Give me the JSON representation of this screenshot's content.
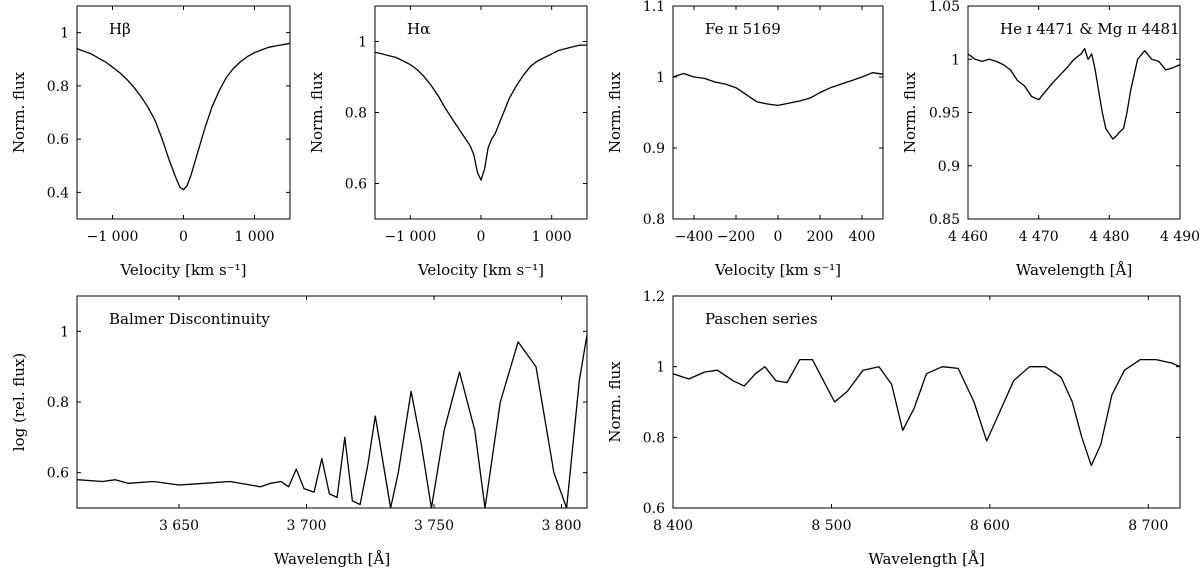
{
  "chart_data": [
    {
      "id": "hbeta",
      "type": "line",
      "title": "Hβ",
      "xlabel": "Velocity [km s⁻¹]",
      "ylabel": "Norm. flux",
      "xlim": [
        -1500,
        1500
      ],
      "ylim": [
        0.3,
        1.1
      ],
      "xticks": [
        -1000,
        0,
        1000
      ],
      "xtick_labels": [
        "−1 000",
        "0",
        "1 000"
      ],
      "yticks": [
        0.4,
        0.6,
        0.8,
        1.0
      ],
      "ytick_labels": [
        "0.4",
        "0.6",
        "0.8",
        "1"
      ],
      "grid": false,
      "series": [
        {
          "x": [
            -1500,
            -1400,
            -1300,
            -1200,
            -1100,
            -1000,
            -900,
            -800,
            -700,
            -600,
            -500,
            -400,
            -300,
            -200,
            -100,
            -50,
            0,
            50,
            100,
            200,
            300,
            400,
            500,
            600,
            700,
            800,
            900,
            1000,
            1100,
            1200,
            1300,
            1400,
            1500
          ],
          "y": [
            0.94,
            0.93,
            0.92,
            0.905,
            0.89,
            0.87,
            0.85,
            0.825,
            0.795,
            0.76,
            0.72,
            0.67,
            0.6,
            0.52,
            0.45,
            0.42,
            0.41,
            0.425,
            0.46,
            0.55,
            0.64,
            0.72,
            0.78,
            0.83,
            0.865,
            0.89,
            0.91,
            0.925,
            0.935,
            0.945,
            0.95,
            0.955,
            0.96
          ]
        }
      ]
    },
    {
      "id": "halpha",
      "type": "line",
      "title": "Hα",
      "xlabel": "Velocity [km s⁻¹]",
      "ylabel": "Norm. flux",
      "xlim": [
        -1500,
        1500
      ],
      "ylim": [
        0.5,
        1.1
      ],
      "xticks": [
        -1000,
        0,
        1000
      ],
      "xtick_labels": [
        "−1 000",
        "0",
        "1 000"
      ],
      "yticks": [
        0.6,
        0.8,
        1.0
      ],
      "ytick_labels": [
        "0.6",
        "0.8",
        "1"
      ],
      "grid": false,
      "series": [
        {
          "x": [
            -1500,
            -1400,
            -1300,
            -1200,
            -1100,
            -1000,
            -900,
            -800,
            -700,
            -600,
            -500,
            -400,
            -300,
            -200,
            -150,
            -100,
            -50,
            0,
            50,
            100,
            150,
            200,
            300,
            400,
            500,
            600,
            700,
            800,
            900,
            1000,
            1100,
            1200,
            1300,
            1400,
            1500
          ],
          "y": [
            0.97,
            0.965,
            0.96,
            0.955,
            0.945,
            0.935,
            0.92,
            0.9,
            0.875,
            0.845,
            0.81,
            0.78,
            0.75,
            0.72,
            0.705,
            0.68,
            0.63,
            0.61,
            0.64,
            0.7,
            0.725,
            0.74,
            0.79,
            0.84,
            0.875,
            0.905,
            0.93,
            0.945,
            0.955,
            0.965,
            0.975,
            0.98,
            0.985,
            0.99,
            0.99
          ]
        }
      ]
    },
    {
      "id": "fe5169",
      "type": "line",
      "title": "Fe ɪɪ 5169",
      "xlabel": "Velocity [km s⁻¹]",
      "ylabel": "Norm. flux",
      "xlim": [
        -500,
        500
      ],
      "ylim": [
        0.8,
        1.1
      ],
      "xticks": [
        -400,
        -200,
        0,
        200,
        400
      ],
      "xtick_labels": [
        "−400",
        "−200",
        "0",
        "200",
        "400"
      ],
      "yticks": [
        0.8,
        0.9,
        1.0,
        1.1
      ],
      "ytick_labels": [
        "0.8",
        "0.9",
        "1",
        "1.1"
      ],
      "grid": false,
      "series": [
        {
          "x": [
            -500,
            -450,
            -400,
            -350,
            -300,
            -250,
            -200,
            -150,
            -100,
            -50,
            0,
            50,
            100,
            150,
            200,
            250,
            300,
            350,
            400,
            450,
            500
          ],
          "y": [
            1.0,
            1.005,
            1.0,
            0.998,
            0.993,
            0.99,
            0.985,
            0.975,
            0.965,
            0.962,
            0.96,
            0.963,
            0.966,
            0.97,
            0.978,
            0.985,
            0.99,
            0.995,
            1.0,
            1.006,
            1.004
          ]
        }
      ]
    },
    {
      "id": "he4471",
      "type": "line",
      "title": "He ɪ 4471 & Mg ɪɪ 4481",
      "xlabel": "Wavelength [Å]",
      "ylabel": "Norm. flux",
      "xlim": [
        4460,
        4490
      ],
      "ylim": [
        0.85,
        1.05
      ],
      "xticks": [
        4460,
        4470,
        4480,
        4490
      ],
      "xtick_labels": [
        "4 460",
        "4 470",
        "4 480",
        "4 490"
      ],
      "yticks": [
        0.85,
        0.9,
        0.95,
        1.0,
        1.05
      ],
      "ytick_labels": [
        "0.85",
        "0.9",
        "0.95",
        "1",
        "1.05"
      ],
      "grid": false,
      "series": [
        {
          "x": [
            4460,
            4461,
            4462,
            4463,
            4464,
            4465,
            4466,
            4467,
            4468,
            4469,
            4470,
            4471,
            4472,
            4473,
            4474,
            4475,
            4476,
            4476.5,
            4477,
            4477.5,
            4478,
            4478.5,
            4479,
            4479.5,
            4480,
            4480.5,
            4481,
            4481.5,
            4482,
            4482.5,
            4483,
            4484,
            4485,
            4486,
            4487,
            4488,
            4489,
            4490
          ],
          "y": [
            1.005,
            1.0,
            0.998,
            1.0,
            0.998,
            0.995,
            0.99,
            0.98,
            0.975,
            0.965,
            0.962,
            0.97,
            0.978,
            0.985,
            0.992,
            1.0,
            1.005,
            1.01,
            1.0,
            1.005,
            0.99,
            0.97,
            0.95,
            0.935,
            0.93,
            0.925,
            0.928,
            0.932,
            0.935,
            0.95,
            0.97,
            1.0,
            1.008,
            1.0,
            0.998,
            0.99,
            0.992,
            0.995
          ]
        }
      ]
    },
    {
      "id": "balmer",
      "type": "line",
      "title": "Balmer Discontinuity",
      "xlabel": "Wavelength [Å]",
      "ylabel": "log (rel. flux)",
      "xlim": [
        3610,
        3810
      ],
      "ylim": [
        0.5,
        1.1
      ],
      "xticks": [
        3650,
        3700,
        3750,
        3800
      ],
      "xtick_labels": [
        "3 650",
        "3 700",
        "3 750",
        "3 800"
      ],
      "yticks": [
        0.6,
        0.8,
        1.0
      ],
      "ytick_labels": [
        "0.6",
        "0.8",
        "1"
      ],
      "grid": false,
      "series": [
        {
          "x": [
            3610,
            3620,
            3625,
            3630,
            3640,
            3650,
            3660,
            3670,
            3678,
            3682,
            3686,
            3690,
            3693,
            3696,
            3699,
            3703,
            3706,
            3709,
            3712,
            3715,
            3718,
            3721,
            3724,
            3727,
            3730,
            3733,
            3736,
            3741,
            3745,
            3749,
            3754,
            3760,
            3766,
            3770,
            3776,
            3783,
            3790,
            3797,
            3802,
            3807,
            3810
          ],
          "y": [
            0.58,
            0.575,
            0.58,
            0.57,
            0.575,
            0.565,
            0.57,
            0.575,
            0.565,
            0.56,
            0.57,
            0.575,
            0.56,
            0.61,
            0.555,
            0.545,
            0.64,
            0.54,
            0.53,
            0.7,
            0.52,
            0.51,
            0.62,
            0.76,
            0.63,
            0.5,
            0.6,
            0.83,
            0.68,
            0.5,
            0.72,
            0.885,
            0.72,
            0.5,
            0.8,
            0.97,
            0.9,
            0.6,
            0.5,
            0.86,
            0.99
          ]
        }
      ]
    },
    {
      "id": "paschen",
      "type": "line",
      "title": "Paschen series",
      "xlabel": "Wavelength [Å]",
      "ylabel": "Norm. flux",
      "xlim": [
        8400,
        8720
      ],
      "ylim": [
        0.6,
        1.2
      ],
      "xticks": [
        8400,
        8500,
        8600,
        8700
      ],
      "xtick_labels": [
        "8 400",
        "8 500",
        "8 600",
        "8 700"
      ],
      "yticks": [
        0.6,
        0.8,
        1.0,
        1.2
      ],
      "ytick_labels": [
        "0.6",
        "0.8",
        "1",
        "1.2"
      ],
      "grid": false,
      "series": [
        {
          "x": [
            8400,
            8410,
            8420,
            8428,
            8438,
            8445,
            8452,
            8458,
            8465,
            8472,
            8480,
            8488,
            8495,
            8502,
            8510,
            8520,
            8530,
            8538,
            8545,
            8552,
            8560,
            8570,
            8580,
            8590,
            8598,
            8606,
            8615,
            8625,
            8635,
            8645,
            8652,
            8658,
            8664,
            8670,
            8677,
            8685,
            8695,
            8705,
            8715,
            8720
          ],
          "y": [
            0.98,
            0.965,
            0.985,
            0.99,
            0.96,
            0.945,
            0.98,
            1.0,
            0.96,
            0.955,
            1.02,
            1.02,
            0.96,
            0.9,
            0.93,
            0.99,
            1.0,
            0.95,
            0.82,
            0.88,
            0.98,
            1.0,
            0.995,
            0.9,
            0.79,
            0.87,
            0.96,
            1.0,
            1.0,
            0.97,
            0.9,
            0.8,
            0.72,
            0.78,
            0.92,
            0.99,
            1.02,
            1.02,
            1.01,
            1.0
          ]
        }
      ]
    }
  ]
}
